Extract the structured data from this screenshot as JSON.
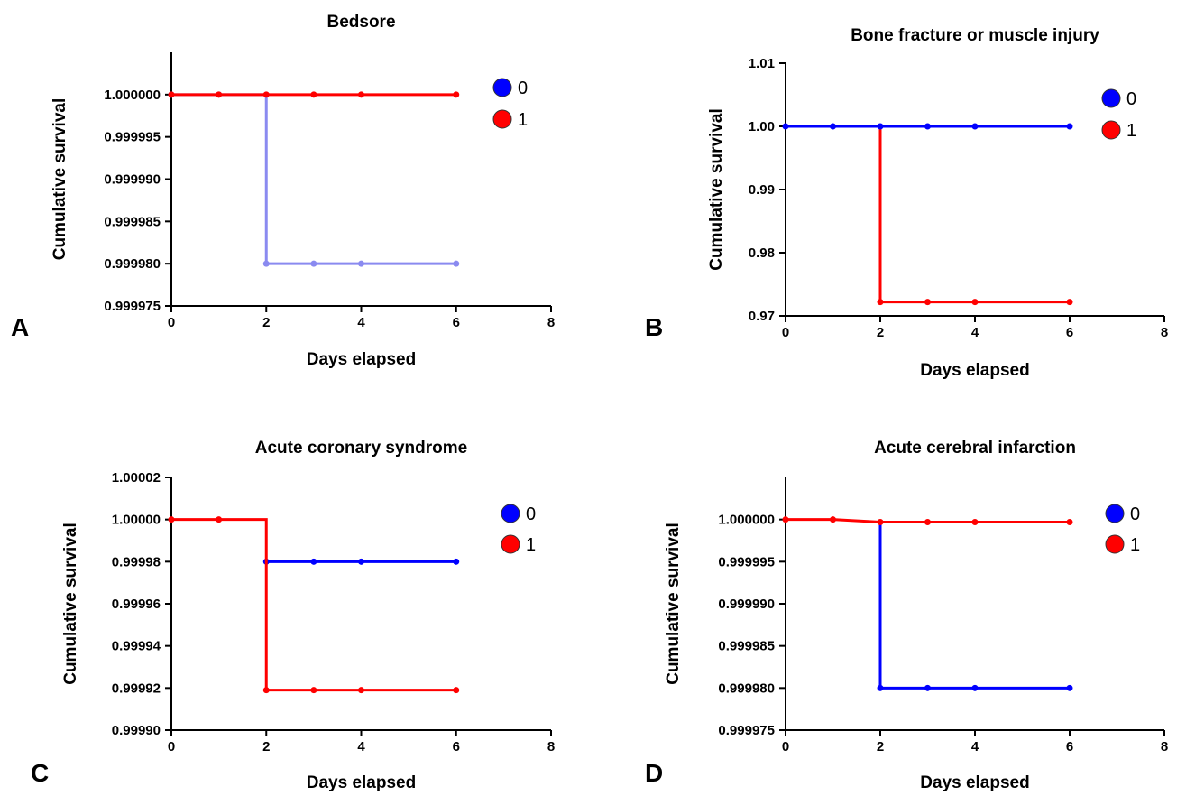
{
  "chart_data": [
    {
      "type": "line",
      "panel_label": "A",
      "title": "Bedsore",
      "xlabel": "Days elapsed",
      "ylabel": "Cumulative survival",
      "xlim": [
        0,
        8
      ],
      "ylim": [
        0.999975,
        1.000005
      ],
      "x_ticks": [
        0,
        2,
        4,
        6,
        8
      ],
      "x_tick_labels": [
        "0",
        "2",
        "4",
        "6",
        "8"
      ],
      "y_ticks": [
        0.999975,
        0.99998,
        0.999985,
        0.99999,
        0.999995,
        1.0
      ],
      "y_tick_labels": [
        "0.999975",
        "0.999980",
        "0.999985",
        "0.999990",
        "0.999995",
        "1.000000"
      ],
      "legend_position": "top-right",
      "series": [
        {
          "name": "0",
          "color": "#8a8af0",
          "x": [
            0,
            1,
            2,
            2,
            3,
            4,
            6
          ],
          "y": [
            1.0,
            1.0,
            1.0,
            0.99998,
            0.99998,
            0.99998,
            0.99998
          ],
          "marker_x": [
            0,
            1,
            2,
            3,
            4,
            6
          ],
          "marker_y": [
            1.0,
            1.0,
            0.99998,
            0.99998,
            0.99998,
            0.99998
          ],
          "legend_color": "#0000ff"
        },
        {
          "name": "1",
          "color": "#ff0000",
          "x": [
            0,
            1,
            2,
            3,
            4,
            6
          ],
          "y": [
            1.0,
            1.0,
            1.0,
            1.0,
            1.0,
            1.0
          ],
          "marker_x": [
            0,
            1,
            2,
            3,
            4,
            6
          ],
          "marker_y": [
            1.0,
            1.0,
            1.0,
            1.0,
            1.0,
            1.0
          ],
          "legend_color": "#ff0000"
        }
      ],
      "draw_order": [
        0,
        1
      ]
    },
    {
      "type": "line",
      "panel_label": "B",
      "title": "Bone fracture or muscle injury",
      "xlabel": "Days elapsed",
      "ylabel": "Cumulative survival",
      "xlim": [
        0,
        8
      ],
      "ylim": [
        0.97,
        1.01
      ],
      "x_ticks": [
        0,
        2,
        4,
        6,
        8
      ],
      "x_tick_labels": [
        "0",
        "2",
        "4",
        "6",
        "8"
      ],
      "y_ticks": [
        0.97,
        0.98,
        0.99,
        1.0,
        1.01
      ],
      "y_tick_labels": [
        "0.97",
        "0.98",
        "0.99",
        "1.00",
        "1.01"
      ],
      "legend_position": "top-right",
      "series": [
        {
          "name": "0",
          "color": "#0000ff",
          "x": [
            0,
            1,
            2,
            3,
            4,
            6
          ],
          "y": [
            1.0,
            1.0,
            1.0,
            1.0,
            1.0,
            1.0
          ],
          "marker_x": [
            0,
            1,
            2,
            3,
            4,
            6
          ],
          "marker_y": [
            1.0,
            1.0,
            1.0,
            1.0,
            1.0,
            1.0
          ],
          "legend_color": "#0000ff"
        },
        {
          "name": "1",
          "color": "#ff0000",
          "x": [
            2,
            2,
            3,
            4,
            6
          ],
          "y": [
            1.0,
            0.9722,
            0.9722,
            0.9722,
            0.9722
          ],
          "marker_x": [
            2,
            3,
            4,
            6
          ],
          "marker_y": [
            0.9722,
            0.9722,
            0.9722,
            0.9722
          ],
          "legend_color": "#ff0000"
        }
      ],
      "draw_order": [
        1,
        0
      ]
    },
    {
      "type": "line",
      "panel_label": "C",
      "title": "Acute coronary syndrome",
      "xlabel": "Days elapsed",
      "ylabel": "Cumulative survival",
      "xlim": [
        0,
        8
      ],
      "ylim": [
        0.9999,
        1.00002
      ],
      "x_ticks": [
        0,
        2,
        4,
        6,
        8
      ],
      "x_tick_labels": [
        "0",
        "2",
        "4",
        "6",
        "8"
      ],
      "y_ticks": [
        0.9999,
        0.99992,
        0.99994,
        0.99996,
        0.99998,
        1.0,
        1.00002
      ],
      "y_tick_labels": [
        "0.99990",
        "0.99992",
        "0.99994",
        "0.99996",
        "0.99998",
        "1.00000",
        "1.00002"
      ],
      "legend_position": "top-right",
      "series": [
        {
          "name": "0",
          "color": "#0000ff",
          "x": [
            2,
            3,
            4,
            6
          ],
          "y": [
            0.99998,
            0.99998,
            0.99998,
            0.99998
          ],
          "marker_x": [
            2,
            3,
            4,
            6
          ],
          "marker_y": [
            0.99998,
            0.99998,
            0.99998,
            0.99998
          ],
          "legend_color": "#0000ff"
        },
        {
          "name": "1",
          "color": "#ff0000",
          "x": [
            0,
            1,
            2,
            2,
            3,
            4,
            6
          ],
          "y": [
            1.0,
            1.0,
            1.0,
            0.999919,
            0.999919,
            0.999919,
            0.999919
          ],
          "marker_x": [
            0,
            1,
            2,
            3,
            4,
            6
          ],
          "marker_y": [
            1.0,
            1.0,
            0.999919,
            0.999919,
            0.999919,
            0.999919
          ],
          "legend_color": "#ff0000"
        }
      ],
      "draw_order": [
        0,
        1
      ]
    },
    {
      "type": "line",
      "panel_label": "D",
      "title": "Acute cerebral infarction",
      "xlabel": "Days elapsed",
      "ylabel": "Cumulative survival",
      "xlim": [
        0,
        8
      ],
      "ylim": [
        0.999975,
        1.000005
      ],
      "x_ticks": [
        0,
        2,
        4,
        6,
        8
      ],
      "x_tick_labels": [
        "0",
        "2",
        "4",
        "6",
        "8"
      ],
      "y_ticks": [
        0.999975,
        0.99998,
        0.999985,
        0.99999,
        0.999995,
        1.0
      ],
      "y_tick_labels": [
        "0.999975",
        "0.999980",
        "0.999985",
        "0.999990",
        "0.999995",
        "1.000000"
      ],
      "legend_position": "top-right",
      "series": [
        {
          "name": "0",
          "color": "#0000ff",
          "x": [
            2,
            2,
            3,
            4,
            6
          ],
          "y": [
            1.0,
            0.99998,
            0.99998,
            0.99998,
            0.99998
          ],
          "marker_x": [
            2,
            3,
            4,
            6
          ],
          "marker_y": [
            0.99998,
            0.99998,
            0.99998,
            0.99998
          ],
          "legend_color": "#0000ff"
        },
        {
          "name": "1",
          "color": "#ff0000",
          "x": [
            0,
            1,
            2,
            3,
            4,
            6
          ],
          "y": [
            1.0,
            1.0,
            0.9999997,
            0.9999997,
            0.9999997,
            0.9999997
          ],
          "marker_x": [
            0,
            1,
            2,
            3,
            4,
            6
          ],
          "marker_y": [
            1.0,
            1.0,
            0.9999997,
            0.9999997,
            0.9999997,
            0.9999997
          ],
          "legend_color": "#ff0000"
        }
      ],
      "draw_order": [
        0,
        1
      ]
    }
  ]
}
